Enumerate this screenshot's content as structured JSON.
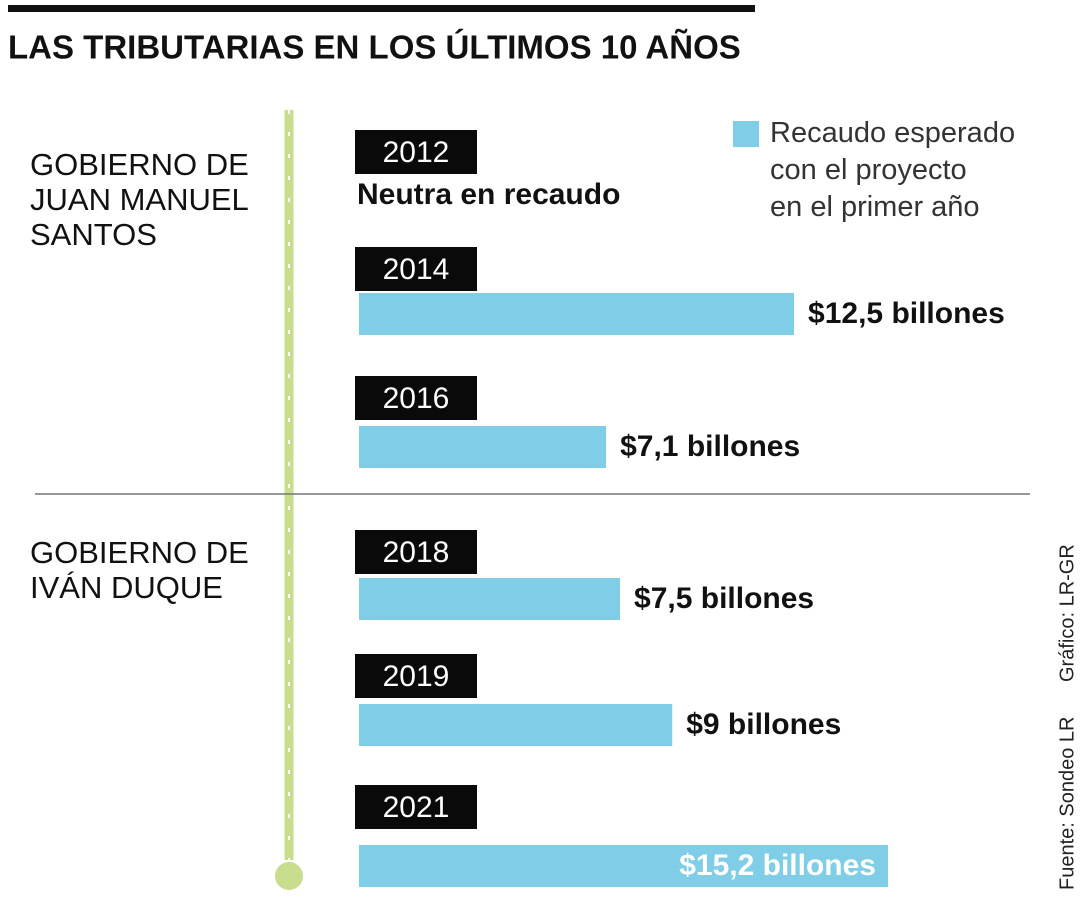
{
  "chart_data": {
    "type": "bar",
    "title": "LAS TRIBUTARIAS EN LOS ÚLTIMOS 10 AÑOS",
    "categories": [
      "2012",
      "2014",
      "2016",
      "2018",
      "2019",
      "2021"
    ],
    "series": [
      {
        "name": "Recaudo esperado\ncon el proyecto\nen el primer año",
        "color": "#7fcde6",
        "values": [
          null,
          12.5,
          7.1,
          7.5,
          9,
          15.2
        ],
        "value_labels": [
          "Neutra en recaudo",
          "$12,5 billones",
          "$7,1 billones",
          "$7,5 billones",
          "$9 billones",
          "$15,2 billones"
        ]
      }
    ],
    "groups": [
      "GOBIERNO DE\nJUAN MANUEL\nSANTOS",
      "GOBIERNO DE\nIVÁN DUQUE"
    ],
    "source": "Fuente: Sondeo LR",
    "credit": "Gráfico: LR-GR"
  }
}
